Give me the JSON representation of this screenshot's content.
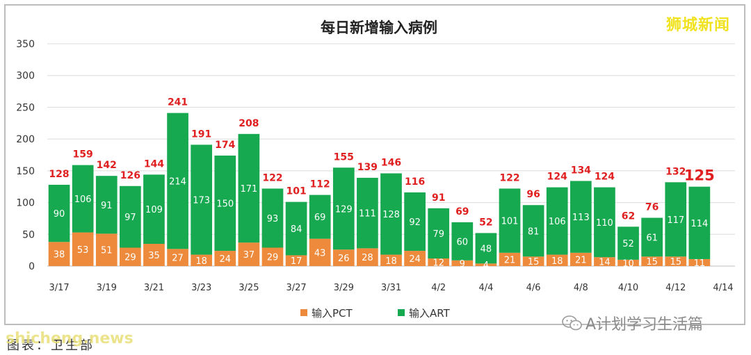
{
  "chart_data": {
    "type": "bar",
    "stacked": true,
    "title": "每日新增输入病例",
    "categories": [
      "3/17",
      "3/18",
      "3/19",
      "3/20",
      "3/21",
      "3/22",
      "3/23",
      "3/24",
      "3/25",
      "3/26",
      "3/27",
      "3/28",
      "3/29",
      "3/30",
      "3/31",
      "4/1",
      "4/2",
      "4/3",
      "4/4",
      "4/5",
      "4/6",
      "4/7",
      "4/8",
      "4/9",
      "4/10",
      "4/11",
      "4/12",
      "4/13",
      "4/14"
    ],
    "x_tick_labels": [
      "3/17",
      "",
      "3/19",
      "",
      "3/21",
      "",
      "3/23",
      "",
      "3/25",
      "",
      "3/27",
      "",
      "3/29",
      "",
      "3/31",
      "",
      "4/2",
      "",
      "4/4",
      "",
      "4/6",
      "",
      "4/8",
      "",
      "4/10",
      "",
      "4/12",
      "",
      "4/14"
    ],
    "series": [
      {
        "name": "输入PCT",
        "color": "#ee8a3c",
        "values": [
          38,
          53,
          51,
          29,
          35,
          27,
          18,
          24,
          37,
          29,
          17,
          43,
          26,
          28,
          18,
          24,
          12,
          9,
          4,
          21,
          15,
          18,
          21,
          14,
          10,
          15,
          15,
          11,
          null
        ]
      },
      {
        "name": "输入ART",
        "color": "#16a94f",
        "values": [
          90,
          106,
          91,
          97,
          109,
          214,
          173,
          150,
          171,
          93,
          84,
          69,
          129,
          111,
          128,
          92,
          79,
          60,
          48,
          101,
          81,
          106,
          113,
          110,
          52,
          61,
          117,
          114,
          null
        ]
      }
    ],
    "totals": [
      128,
      159,
      142,
      126,
      144,
      241,
      191,
      174,
      208,
      122,
      101,
      112,
      155,
      139,
      146,
      116,
      91,
      69,
      52,
      122,
      96,
      124,
      134,
      124,
      62,
      76,
      132,
      125,
      null
    ],
    "highlight_last_total": true,
    "ylim": [
      0,
      350
    ],
    "y_ticks": [
      0,
      50,
      100,
      150,
      200,
      250,
      300,
      350
    ],
    "grid": true,
    "legend_position": "bottom-center",
    "label_colors": {
      "total": "#e02020",
      "inner": "#ffffff"
    }
  },
  "watermarks": {
    "top_right": "狮城新闻",
    "bottom_right": "A计划学习生活篇",
    "bottom_left_site": "shicheng.news"
  },
  "caption": "图表：卫生部"
}
